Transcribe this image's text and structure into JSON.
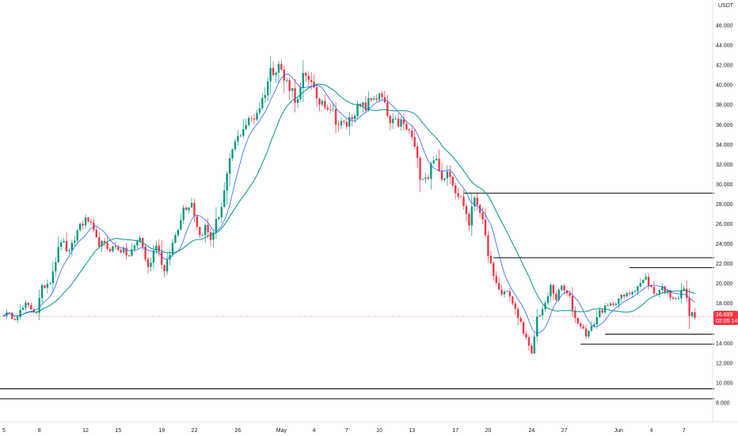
{
  "chart_data": {
    "type": "candlestick",
    "currency": "USDT",
    "ylim": [
      7.0,
      50.4
    ],
    "y_ticks": [
      {
        "v": 8.0,
        "label": "8.000"
      },
      {
        "v": 10.0,
        "label": "10.000"
      },
      {
        "v": 12.0,
        "label": "12.000"
      },
      {
        "v": 14.0,
        "label": "14.000"
      },
      {
        "v": 18.0,
        "label": "18.000"
      },
      {
        "v": 20.0,
        "label": "20.000"
      },
      {
        "v": 22.0,
        "label": "22.000"
      },
      {
        "v": 24.0,
        "label": "24.000"
      },
      {
        "v": 26.0,
        "label": "26.000"
      },
      {
        "v": 28.0,
        "label": "28.000"
      },
      {
        "v": 30.0,
        "label": "30.000"
      },
      {
        "v": 32.0,
        "label": "32.000"
      },
      {
        "v": 34.0,
        "label": "34.000"
      },
      {
        "v": 36.0,
        "label": "36.000"
      },
      {
        "v": 38.0,
        "label": "38.000"
      },
      {
        "v": 40.0,
        "label": "40.000"
      },
      {
        "v": 42.0,
        "label": "42.000"
      },
      {
        "v": 44.0,
        "label": "44.000"
      },
      {
        "v": 46.0,
        "label": "46.000"
      }
    ],
    "x_ticks": [
      {
        "bar": 0,
        "label": "5"
      },
      {
        "bar": 13,
        "label": "8"
      },
      {
        "bar": 30,
        "label": "12"
      },
      {
        "bar": 42,
        "label": "15"
      },
      {
        "bar": 58,
        "label": "19"
      },
      {
        "bar": 70,
        "label": "22"
      },
      {
        "bar": 86,
        "label": "26"
      },
      {
        "bar": 102,
        "label": "May"
      },
      {
        "bar": 114,
        "label": "4"
      },
      {
        "bar": 126,
        "label": "7"
      },
      {
        "bar": 138,
        "label": "10"
      },
      {
        "bar": 150,
        "label": "13"
      },
      {
        "bar": 166,
        "label": "17"
      },
      {
        "bar": 178,
        "label": "20"
      },
      {
        "bar": 194,
        "label": "24"
      },
      {
        "bar": 206,
        "label": "27"
      },
      {
        "bar": 226,
        "label": "Jun"
      },
      {
        "bar": 238,
        "label": "4"
      },
      {
        "bar": 250,
        "label": "7"
      }
    ],
    "last_price": {
      "value": 16.699,
      "label": "16.699",
      "countdown": "02:05:14",
      "color": "#f23645"
    },
    "colors": {
      "up": "#089981",
      "down": "#f23645",
      "ma_fast": "#2962ff",
      "ma_slow": "#009688",
      "level": "#000000"
    },
    "levels": [
      {
        "price": 29.1,
        "from_bar": 169
      },
      {
        "price": 22.6,
        "from_bar": 180
      },
      {
        "price": 21.6,
        "from_bar": 230
      },
      {
        "price": 14.9,
        "from_bar": 221
      },
      {
        "price": 13.9,
        "from_bar": 212
      },
      {
        "price": 9.4,
        "from_bar": 0
      },
      {
        "price": 8.4,
        "from_bar": 0
      }
    ],
    "anchors": [
      [
        0,
        17.0
      ],
      [
        4,
        16.6
      ],
      [
        8,
        17.8
      ],
      [
        12,
        17.2
      ],
      [
        14,
        19.5
      ],
      [
        17,
        20.4
      ],
      [
        21,
        24.4
      ],
      [
        24,
        23.0
      ],
      [
        28,
        26.0
      ],
      [
        31,
        26.4
      ],
      [
        34,
        24.3
      ],
      [
        38,
        23.6
      ],
      [
        42,
        23.6
      ],
      [
        46,
        22.8
      ],
      [
        50,
        24.7
      ],
      [
        53,
        21.5
      ],
      [
        56,
        24.2
      ],
      [
        59,
        21.1
      ],
      [
        62,
        24.0
      ],
      [
        66,
        27.6
      ],
      [
        69,
        28.2
      ],
      [
        72,
        24.8
      ],
      [
        74,
        25.7
      ],
      [
        76,
        24.5
      ],
      [
        80,
        27.8
      ],
      [
        84,
        33.5
      ],
      [
        88,
        35.8
      ],
      [
        92,
        36.8
      ],
      [
        95,
        38.5
      ],
      [
        98,
        41.4
      ],
      [
        101,
        42.2
      ],
      [
        103,
        40.5
      ],
      [
        105,
        40.0
      ],
      [
        108,
        38.2
      ],
      [
        110,
        40.6
      ],
      [
        113,
        40.8
      ],
      [
        115,
        38.0
      ],
      [
        117,
        38.5
      ],
      [
        120,
        37.8
      ],
      [
        123,
        36.0
      ],
      [
        126,
        36.0
      ],
      [
        129,
        37.5
      ],
      [
        133,
        37.8
      ],
      [
        136,
        38.9
      ],
      [
        139,
        38.6
      ],
      [
        142,
        36.0
      ],
      [
        146,
        36.2
      ],
      [
        150,
        34.8
      ],
      [
        153,
        31.0
      ],
      [
        156,
        30.8
      ],
      [
        158,
        32.9
      ],
      [
        161,
        30.4
      ],
      [
        163,
        31.7
      ],
      [
        166,
        29.5
      ],
      [
        169,
        28.0
      ],
      [
        171,
        26.0
      ],
      [
        173,
        28.8
      ],
      [
        175,
        27.5
      ],
      [
        177,
        24.5
      ],
      [
        180,
        20.5
      ],
      [
        183,
        18.9
      ],
      [
        185,
        19.4
      ],
      [
        187,
        17.9
      ],
      [
        190,
        16.0
      ],
      [
        194,
        12.8
      ],
      [
        196,
        16.6
      ],
      [
        199,
        17.8
      ],
      [
        201,
        19.7
      ],
      [
        203,
        18.5
      ],
      [
        205,
        19.7
      ],
      [
        208,
        18.5
      ],
      [
        210,
        16.5
      ],
      [
        212,
        15.8
      ],
      [
        214,
        14.9
      ],
      [
        216,
        15.5
      ],
      [
        219,
        17.2
      ],
      [
        223,
        17.8
      ],
      [
        226,
        18.5
      ],
      [
        229,
        18.8
      ],
      [
        233,
        19.8
      ],
      [
        236,
        20.5
      ],
      [
        239,
        19.0
      ],
      [
        242,
        19.6
      ],
      [
        245,
        18.8
      ],
      [
        248,
        18.6
      ],
      [
        250,
        19.6
      ],
      [
        252,
        17.0
      ],
      [
        254,
        16.7
      ]
    ]
  }
}
